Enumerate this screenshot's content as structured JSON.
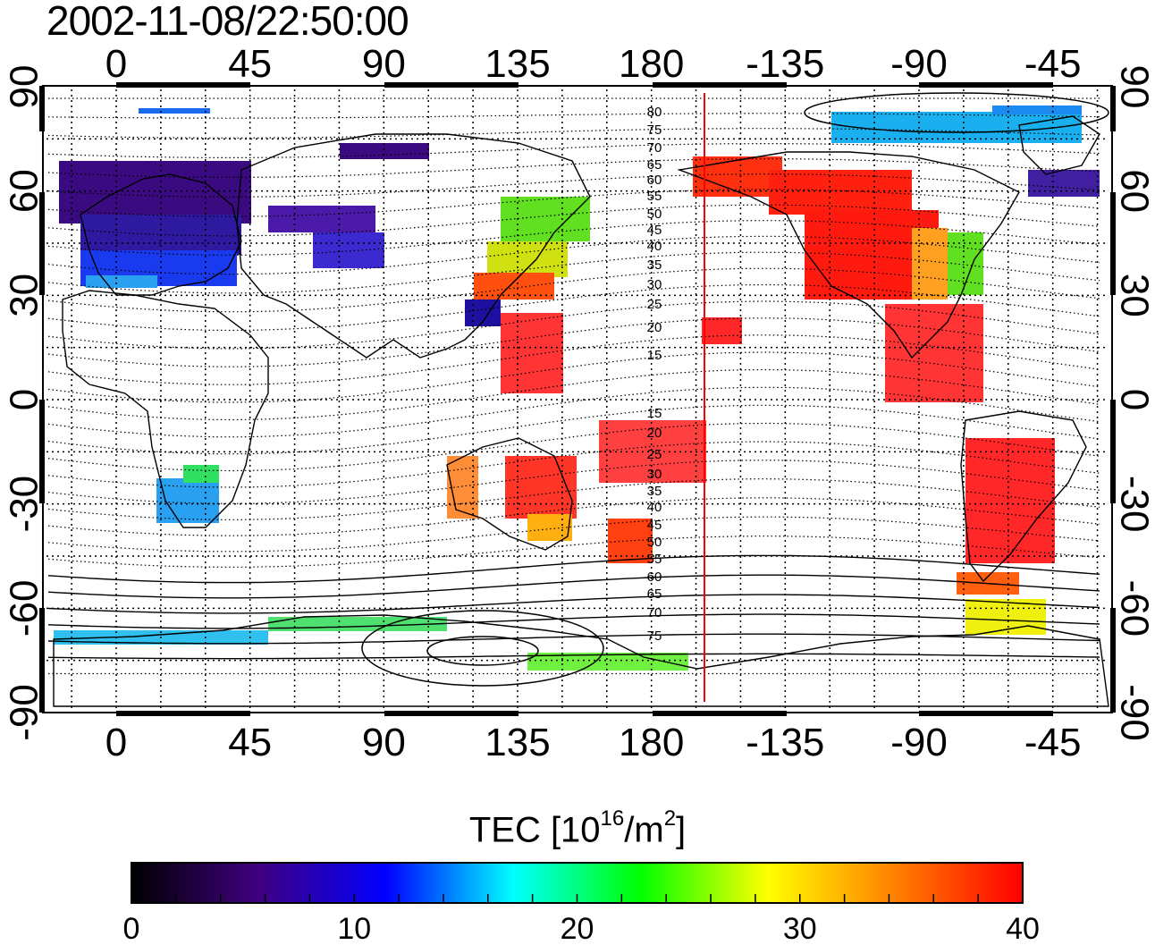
{
  "title": "2002-11-08/22:50:00",
  "map": {
    "top_lon_labels": [
      "0",
      "45",
      "90",
      "135",
      "180",
      "-135",
      "-90",
      "-45"
    ],
    "bottom_lon_labels": [
      "0",
      "45",
      "90",
      "135",
      "180",
      "-135",
      "-90",
      "-45"
    ],
    "left_lat_labels": [
      "90",
      "60",
      "30",
      "0",
      "-30",
      "-60",
      "-90"
    ],
    "right_lat_labels": [
      "90",
      "60",
      "30",
      "0",
      "-30",
      "-60",
      "-90"
    ],
    "lon_ticks_deg": [
      0,
      45,
      90,
      135,
      180,
      225,
      270,
      315
    ],
    "lat_ticks_deg": [
      90,
      60,
      30,
      0,
      -30,
      -60,
      -90
    ],
    "contour_labels_north": [
      "80",
      "75",
      "70",
      "65",
      "60",
      "55",
      "50",
      "45",
      "40",
      "35",
      "30",
      "25",
      "20",
      "15"
    ],
    "contour_labels_south": [
      "15",
      "20",
      "25",
      "30",
      "35",
      "40",
      "45",
      "50",
      "55",
      "60",
      "65",
      "70",
      "75"
    ],
    "marker_line_color": "#ff0000"
  },
  "colorbar": {
    "label_prefix": "TEC  [10",
    "label_sup1": "16",
    "label_mid": "/m",
    "label_sup2": "2",
    "label_suffix": "]",
    "tick_labels": [
      "0",
      "10",
      "20",
      "30",
      "40"
    ],
    "min": 0,
    "max": 40,
    "colors": [
      "#000000",
      "#400080",
      "#0000ff",
      "#00ffff",
      "#00ff00",
      "#ffff00",
      "#ff8000",
      "#ff0000"
    ]
  }
}
